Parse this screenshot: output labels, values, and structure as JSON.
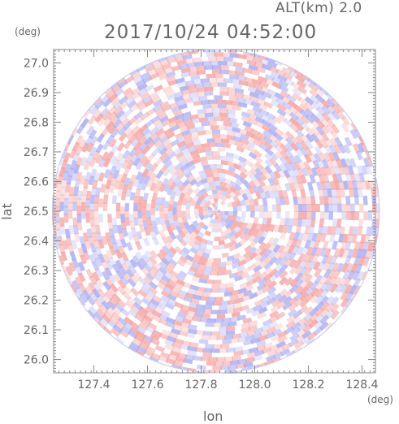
{
  "header": {
    "altitude_label": "ALT(km) 2.0",
    "timestamp": "2017/10/24 04:52:00"
  },
  "colors": {
    "positive": "#f4a0a0",
    "negative": "#a8aaf0",
    "axis": "#888888",
    "text": "#666666"
  },
  "chart_data": {
    "type": "heatmap",
    "title": "2017/10/24 04:52:00",
    "subtitle": "ALT(km) 2.0",
    "xlabel": "lon",
    "ylabel": "lat",
    "x_unit": "(deg)",
    "y_unit": "(deg)",
    "xlim": [
      127.25,
      128.45
    ],
    "ylim": [
      25.955,
      27.045
    ],
    "x_ticks": [
      127.4,
      127.6,
      127.8,
      128.0,
      128.2,
      128.4
    ],
    "x_tick_labels": [
      "127.4",
      "127.6",
      "127.8",
      "128.0",
      "128.2",
      "128.4"
    ],
    "y_ticks": [
      26.0,
      26.1,
      26.2,
      26.3,
      26.4,
      26.5,
      26.6,
      26.7,
      26.8,
      26.9,
      27.0
    ],
    "y_tick_labels": [
      "26.0",
      "26.1",
      "26.2",
      "26.3",
      "26.4",
      "26.5",
      "26.6",
      "26.7",
      "26.8",
      "26.9",
      "27.0"
    ],
    "radar_center": [
      127.855,
      26.5
    ],
    "radar_extent_lon": 0.61,
    "radar_extent_lat": 0.545,
    "grid": false,
    "legend": "none",
    "colorscale": "diverging red-white-blue"
  }
}
